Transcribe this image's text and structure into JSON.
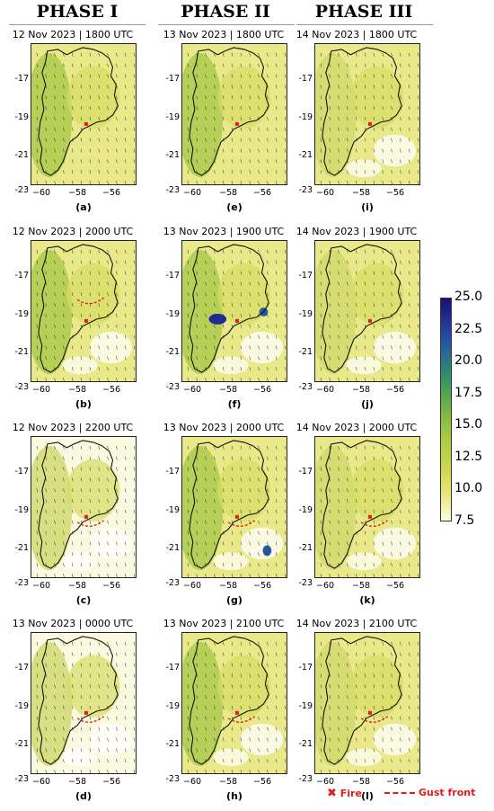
{
  "phases": [
    "PHASE  I",
    "PHASE  II",
    "PHASE III"
  ],
  "panels": [
    {
      "title": "12 Nov 2023 | 1800 UTC",
      "label": "(a)"
    },
    {
      "title": "12 Nov 2023 | 2000 UTC",
      "label": "(b)"
    },
    {
      "title": "12 Nov 2023 | 2200 UTC",
      "label": "(c)"
    },
    {
      "title": "13 Nov 2023 | 0000 UTC",
      "label": "(d)"
    },
    {
      "title": "13 Nov 2023 | 1800 UTC",
      "label": "(e)"
    },
    {
      "title": "13 Nov 2023 | 1900 UTC",
      "label": "(f)"
    },
    {
      "title": "13 Nov 2023 | 2000 UTC",
      "label": "(g)"
    },
    {
      "title": "13 Nov 2023 | 2100 UTC",
      "label": "(h)"
    },
    {
      "title": "14 Nov 2023 | 1800 UTC",
      "label": "(i)"
    },
    {
      "title": "14 Nov 2023 | 1900 UTC",
      "label": "(j)"
    },
    {
      "title": "14 Nov 2023 | 2000 UTC",
      "label": "(k)"
    },
    {
      "title": "14 Nov 2023 | 2100 UTC",
      "label": "(l)"
    }
  ],
  "axes": {
    "yticks": [
      "-17",
      "-19",
      "-21",
      "-23"
    ],
    "xticks": [
      "−60",
      "−58",
      "−56"
    ]
  },
  "colorbar": {
    "ticks": [
      "25.0",
      "22.5",
      "20.0",
      "17.5",
      "15.0",
      "12.5",
      "10.0",
      "7.5"
    ],
    "range": [
      7.5,
      25.0
    ]
  },
  "legend": {
    "fire": "Fire",
    "gust_front": "Gust front"
  },
  "colors": {
    "fire": "#e31b1b",
    "gust_front": "#e31b1b",
    "outline": "#111111"
  }
}
